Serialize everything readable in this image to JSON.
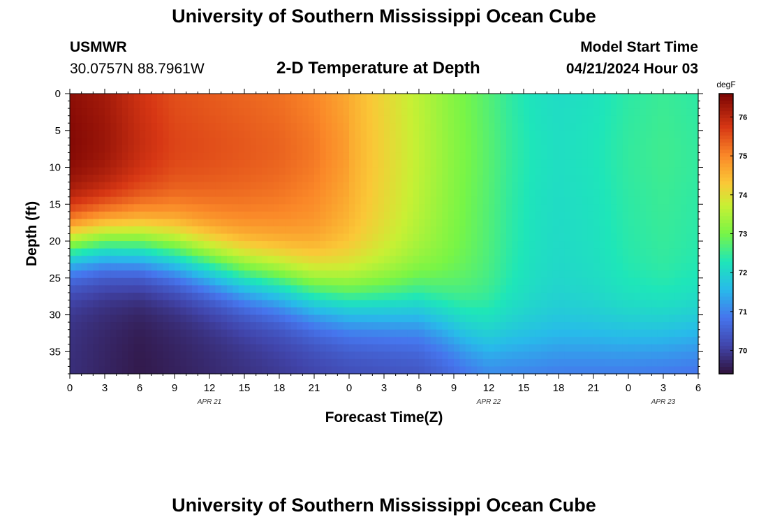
{
  "page": {
    "title_top": "University of Southern Mississippi Ocean Cube",
    "title_bottom": "University of Southern Mississippi Ocean Cube",
    "station_id": "USMWR",
    "station_coords": "30.0757N  88.7961W",
    "plot_title": "2-D Temperature at Depth",
    "model_start_label": "Model Start Time",
    "model_start_value": "04/21/2024 Hour 03"
  },
  "chart_data": {
    "type": "heatmap",
    "title": "2-D Temperature at Depth",
    "xlabel": "Forecast Time(Z)",
    "ylabel": "Depth (ft)",
    "x_range_hours": [
      0,
      54
    ],
    "y_range_ft": [
      0,
      38
    ],
    "x_ticks": [
      {
        "h": 0,
        "label": "0"
      },
      {
        "h": 3,
        "label": "3"
      },
      {
        "h": 6,
        "label": "6"
      },
      {
        "h": 9,
        "label": "9"
      },
      {
        "h": 12,
        "label": "12"
      },
      {
        "h": 15,
        "label": "15"
      },
      {
        "h": 18,
        "label": "18"
      },
      {
        "h": 21,
        "label": "21"
      },
      {
        "h": 24,
        "label": "0"
      },
      {
        "h": 27,
        "label": "3"
      },
      {
        "h": 30,
        "label": "6"
      },
      {
        "h": 33,
        "label": "9"
      },
      {
        "h": 36,
        "label": "12"
      },
      {
        "h": 39,
        "label": "15"
      },
      {
        "h": 42,
        "label": "18"
      },
      {
        "h": 45,
        "label": "21"
      },
      {
        "h": 48,
        "label": "0"
      },
      {
        "h": 51,
        "label": "3"
      },
      {
        "h": 54,
        "label": "6"
      }
    ],
    "date_labels": [
      {
        "h": 12,
        "label": "APR 21"
      },
      {
        "h": 36,
        "label": "APR 22"
      },
      {
        "h": 51,
        "label": "APR 23"
      }
    ],
    "y_ticks": [
      0,
      5,
      10,
      15,
      20,
      25,
      30,
      35
    ],
    "colorbar": {
      "unit": "degF",
      "min": 69.4,
      "max": 76.6,
      "ticks": [
        70,
        71,
        72,
        73,
        74,
        75,
        76
      ]
    },
    "thermocline_depth_ft_by_hour": [
      [
        0,
        20.5
      ],
      [
        3,
        20
      ],
      [
        6,
        20.5
      ],
      [
        9,
        21.5
      ],
      [
        12,
        23
      ],
      [
        15,
        24.5
      ],
      [
        18,
        25.5
      ],
      [
        21,
        27
      ],
      [
        24,
        28
      ],
      [
        27,
        28.5
      ],
      [
        30,
        29
      ],
      [
        32,
        30.5
      ],
      [
        34,
        32.5
      ],
      [
        36,
        34
      ],
      [
        40,
        34.5
      ],
      [
        46,
        34
      ],
      [
        54,
        33
      ]
    ],
    "surface_temp_degF_by_hour": [
      [
        0,
        76.4
      ],
      [
        3,
        76.2
      ],
      [
        6,
        75.8
      ],
      [
        9,
        75.5
      ],
      [
        12,
        75.4
      ],
      [
        15,
        75.3
      ],
      [
        18,
        75.2
      ],
      [
        21,
        75.0
      ],
      [
        24,
        74.6
      ],
      [
        27,
        74.1
      ],
      [
        30,
        73.6
      ],
      [
        33,
        73.1
      ],
      [
        36,
        72.7
      ],
      [
        38,
        72.4
      ],
      [
        40,
        72.2
      ],
      [
        42,
        72.1
      ],
      [
        45,
        72.2
      ],
      [
        48,
        72.4
      ],
      [
        51,
        72.5
      ],
      [
        54,
        72.4
      ]
    ],
    "bottom_temp_degF_by_hour": [
      [
        0,
        69.8
      ],
      [
        6,
        69.5
      ],
      [
        12,
        69.7
      ],
      [
        24,
        70.1
      ],
      [
        30,
        70.2
      ],
      [
        36,
        70.6
      ],
      [
        54,
        70.5
      ]
    ]
  }
}
